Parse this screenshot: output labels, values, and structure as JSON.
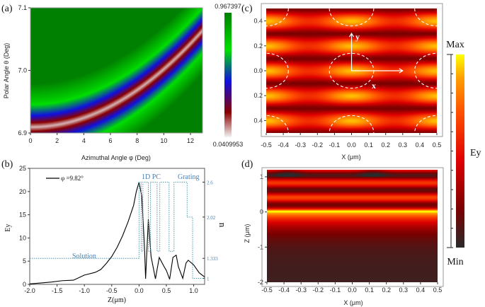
{
  "chart_data": [
    {
      "panel": "(a)",
      "type": "heatmap",
      "xlabel": "Azimuthal Angle φ (Deg)",
      "ylabel": "Polar Angle θ (Deg)",
      "xlim": [
        0,
        12.9
      ],
      "ylim": [
        6.9,
        7.1
      ],
      "xticks": [
        "0",
        "2",
        "4",
        "6",
        "8",
        "10",
        "12"
      ],
      "yticks": [
        "6.9",
        "7.0",
        "7.1"
      ],
      "colorbar": {
        "max": "0.967397",
        "min": "0.0409953",
        "colors": [
          "#f4f4f4",
          "#7a0000",
          "#1010e0",
          "#00e000",
          "#008000"
        ]
      },
      "resonance_curve": {
        "phi": [
          0,
          2,
          4,
          6,
          8,
          10,
          12.9
        ],
        "theta": [
          6.91,
          6.914,
          6.925,
          6.944,
          6.971,
          7.005,
          7.065
        ]
      }
    },
    {
      "panel": "(b)",
      "type": "line",
      "xlabel": "Z(μm)",
      "ylabel": "Ey",
      "y2label": "n",
      "xlim": [
        -2.0,
        1.2
      ],
      "ylim": [
        0,
        25
      ],
      "y2lim": [
        0.9,
        2.83
      ],
      "xticks": [
        "-2.0",
        "-1.5",
        "-1.0",
        "-0.5",
        "0.0",
        "0.5",
        "1.0"
      ],
      "yticks": [
        "0",
        "5",
        "10",
        "15",
        "20",
        "25"
      ],
      "y2ticks": [
        "1",
        "1.333",
        "2.02",
        "2.6"
      ],
      "annotations": [
        "Solution",
        "1D PC",
        "Grating"
      ],
      "series": [
        {
          "name": "φ =9.82°",
          "color": "#000000",
          "x": [
            -2.0,
            -1.8,
            -1.6,
            -1.4,
            -1.2,
            -1.0,
            -0.8,
            -0.7,
            -0.6,
            -0.5,
            -0.4,
            -0.3,
            -0.2,
            -0.1,
            -0.05,
            0,
            0.05,
            0.1,
            0.12,
            0.17,
            0.22,
            0.3,
            0.37,
            0.45,
            0.5,
            0.56,
            0.62,
            0.68,
            0.72,
            0.8,
            0.86,
            0.9,
            1.0,
            1.1,
            1.2
          ],
          "y": [
            0.1,
            0.3,
            0.5,
            0.8,
            0.9,
            2.0,
            2.6,
            3.2,
            4.5,
            6,
            8,
            10.5,
            13.5,
            17,
            20,
            22,
            19,
            8,
            1.2,
            14,
            6,
            1.2,
            5.8,
            4,
            3,
            1.1,
            5.8,
            6.3,
            3.8,
            1.3,
            4.6,
            5.2,
            4.2,
            2.5,
            1.6
          ]
        },
        {
          "name": "n",
          "color": "#4a9ab0",
          "axis": "right",
          "style": "dotted",
          "z": [
            -2.0,
            0,
            0.04,
            0.07,
            0.17,
            0.21,
            0.33,
            0.38,
            0.55,
            0.64,
            0.72,
            0.88,
            0.98,
            1.2
          ],
          "n": [
            1.333,
            2.6,
            1.45,
            2.6,
            1.45,
            2.6,
            1.45,
            2.6,
            1.45,
            2.6,
            2.6,
            2.02,
            1,
            1
          ]
        }
      ]
    },
    {
      "panel": "(c)",
      "type": "heatmap",
      "xlabel": "X (μm)",
      "ylabel": "",
      "xlim": [
        -0.5,
        0.5
      ],
      "ylim": [
        -0.5,
        0.5
      ],
      "xticks": [
        "-0.5",
        "-0.4",
        "-0.3",
        "-0.2",
        "-0.1",
        "0.0",
        "0.1",
        "0.2",
        "0.3",
        "0.4",
        "0.5"
      ],
      "yticks": [
        "0.4",
        "0.2",
        "0.0",
        "0.2",
        "0.4"
      ],
      "axis_arrows": [
        "x",
        "y"
      ]
    },
    {
      "panel": "(d)",
      "type": "heatmap",
      "xlabel": "X (μm)",
      "ylabel": "Z (μm)",
      "xlim": [
        -0.5,
        0.5
      ],
      "ylim": [
        -2,
        1.2
      ],
      "xticks": [
        "-0.5",
        "-0.4",
        "-0.3",
        "-0.2",
        "-0.1",
        "0.0",
        "0.1",
        "0.2",
        "0.3",
        "0.4",
        "0.5"
      ],
      "yticks": [
        "1",
        "0",
        "-1",
        "-2"
      ]
    }
  ],
  "shared_colorbar": {
    "label": "Ey",
    "max": "Max",
    "min": "Min",
    "colors": [
      "#2a2a2a",
      "#7a0000",
      "#e00000",
      "#ff5000",
      "#ffa000",
      "#ffff00"
    ]
  }
}
